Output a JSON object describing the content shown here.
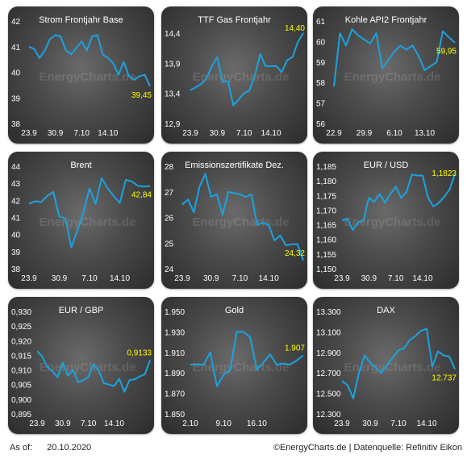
{
  "footer": {
    "as_of_label": "As of:",
    "as_of_date": "20.10.2020",
    "source": "©EnergyCharts.de | Datenquelle: Refinitiv Eikon"
  },
  "watermark": "EnergyCharts.de",
  "colors": {
    "line": "#1aa3e0",
    "last_value": "#ffff00",
    "text": "#ffffff",
    "panel": "#4a4a4a"
  },
  "chart_data": [
    {
      "type": "line",
      "title": "Strom Frontjahr Base",
      "ylim": [
        38,
        42
      ],
      "yticks": [
        "38",
        "39",
        "40",
        "41",
        "42"
      ],
      "xticks": [
        {
          "i": 0,
          "label": "23.9"
        },
        {
          "i": 5,
          "label": "30.9"
        },
        {
          "i": 10,
          "label": "7.10"
        },
        {
          "i": 15,
          "label": "14.10"
        }
      ],
      "values": [
        41.0,
        40.9,
        40.55,
        40.85,
        41.3,
        41.45,
        41.4,
        40.85,
        40.7,
        40.95,
        41.2,
        40.85,
        41.4,
        41.45,
        40.7,
        40.55,
        40.35,
        39.9,
        40.4,
        39.85,
        39.7,
        39.85,
        39.9,
        39.45
      ],
      "last_label": "39,45"
    },
    {
      "type": "line",
      "title": "TTF Gas Frontjahr",
      "ylim": [
        12.9,
        14.6
      ],
      "yticks": [
        "12,9",
        "13,4",
        "13,9",
        "14,4"
      ],
      "ytick_values": [
        12.9,
        13.4,
        13.9,
        14.4
      ],
      "xticks": [
        {
          "i": 0,
          "label": "23.9"
        },
        {
          "i": 5,
          "label": "30.9"
        },
        {
          "i": 10,
          "label": "7.10"
        },
        {
          "i": 15,
          "label": "14.10"
        }
      ],
      "values": [
        13.45,
        13.5,
        13.55,
        13.65,
        13.85,
        14.0,
        13.6,
        13.6,
        13.2,
        13.3,
        13.4,
        13.45,
        13.7,
        14.05,
        13.85,
        13.85,
        13.85,
        13.75,
        13.95,
        14.0,
        14.25,
        14.4
      ],
      "last_label": "14,40"
    },
    {
      "type": "line",
      "title": "Kohle API2 Frontjahr",
      "ylim": [
        56,
        61
      ],
      "yticks": [
        "56",
        "57",
        "58",
        "59",
        "60",
        "61"
      ],
      "xticks": [
        {
          "i": 0,
          "label": "22.9"
        },
        {
          "i": 5,
          "label": "29.9"
        },
        {
          "i": 10,
          "label": "6.10"
        },
        {
          "i": 15,
          "label": "13.10"
        }
      ],
      "values": [
        57.8,
        60.4,
        59.8,
        60.6,
        60.3,
        60.1,
        59.9,
        60.4,
        58.7,
        59.1,
        59.5,
        59.8,
        59.6,
        59.8,
        59.3,
        58.6,
        58.8,
        59.0,
        60.5,
        60.2,
        59.95
      ],
      "last_label": "59,95"
    },
    {
      "type": "line",
      "title": "Brent",
      "ylim": [
        38,
        44
      ],
      "yticks": [
        "38",
        "39",
        "40",
        "41",
        "42",
        "43",
        "44"
      ],
      "xticks": [
        {
          "i": 0,
          "label": "23.9"
        },
        {
          "i": 5,
          "label": "30.9"
        },
        {
          "i": 10,
          "label": "7.10"
        },
        {
          "i": 15,
          "label": "14.10"
        }
      ],
      "values": [
        41.8,
        41.95,
        41.9,
        42.25,
        42.5,
        41.05,
        40.95,
        39.25,
        40.25,
        41.3,
        42.7,
        41.8,
        43.3,
        42.7,
        42.25,
        41.85,
        43.2,
        43.1,
        42.85,
        42.8,
        42.84
      ],
      "last_label": "42,84"
    },
    {
      "type": "line",
      "title": "Emissionszertifikate Dez.",
      "ylim": [
        24,
        28
      ],
      "yticks": [
        "24",
        "25",
        "26",
        "27",
        "28"
      ],
      "xticks": [
        {
          "i": 0,
          "label": "23.9"
        },
        {
          "i": 5,
          "label": "30.9"
        },
        {
          "i": 10,
          "label": "7.10"
        },
        {
          "i": 15,
          "label": "14.10"
        }
      ],
      "values": [
        26.5,
        26.7,
        26.2,
        27.2,
        27.7,
        26.8,
        26.9,
        26.1,
        27.0,
        26.95,
        26.9,
        26.8,
        26.9,
        25.7,
        25.8,
        25.7,
        25.1,
        25.3,
        24.9,
        24.95,
        24.95,
        24.32
      ],
      "last_label": "24,32"
    },
    {
      "type": "line",
      "title": "EUR / USD",
      "ylim": [
        1.15,
        1.185
      ],
      "yticks": [
        "1,150",
        "1,155",
        "1,160",
        "1,165",
        "1,170",
        "1,175",
        "1,180",
        "1,185"
      ],
      "ytick_values": [
        1.15,
        1.155,
        1.16,
        1.165,
        1.17,
        1.175,
        1.18,
        1.185
      ],
      "xticks": [
        {
          "i": 0,
          "label": "23.9"
        },
        {
          "i": 5,
          "label": "30.9"
        },
        {
          "i": 10,
          "label": "7.10"
        },
        {
          "i": 15,
          "label": "14.10"
        }
      ],
      "values": [
        1.1665,
        1.167,
        1.1632,
        1.1658,
        1.1665,
        1.1742,
        1.1728,
        1.1755,
        1.1725,
        1.1755,
        1.178,
        1.1742,
        1.1762,
        1.1822,
        1.1818,
        1.1818,
        1.1742,
        1.1712,
        1.1725,
        1.1745,
        1.177,
        1.1823
      ],
      "last_label": "1,1823"
    },
    {
      "type": "line",
      "title": "EUR / GBP",
      "ylim": [
        0.895,
        0.93
      ],
      "yticks": [
        "0,895",
        "0,900",
        "0,905",
        "0,910",
        "0,915",
        "0,920",
        "0,925",
        "0,930"
      ],
      "ytick_values": [
        0.895,
        0.9,
        0.905,
        0.91,
        0.915,
        0.92,
        0.925,
        0.93
      ],
      "xticks": [
        {
          "i": 0,
          "label": "23.9"
        },
        {
          "i": 5,
          "label": "30.9"
        },
        {
          "i": 10,
          "label": "7.10"
        },
        {
          "i": 15,
          "label": "14.10"
        }
      ],
      "values": [
        0.9165,
        0.9145,
        0.911,
        0.9095,
        0.9075,
        0.9125,
        0.908,
        0.91,
        0.9058,
        0.9065,
        0.9075,
        0.912,
        0.9098,
        0.9055,
        0.905,
        0.9045,
        0.907,
        0.9025,
        0.9065,
        0.9068,
        0.9078,
        0.9085,
        0.9133
      ],
      "last_label": "0,9133"
    },
    {
      "type": "line",
      "title": "Gold",
      "ylim": [
        1850,
        1950
      ],
      "yticks": [
        "1.850",
        "1.870",
        "1.890",
        "1.910",
        "1.930",
        "1.950"
      ],
      "ytick_values": [
        1850,
        1870,
        1890,
        1910,
        1930,
        1950
      ],
      "xticks": [
        {
          "i": 0,
          "label": "2.10"
        },
        {
          "i": 5,
          "label": "9.10"
        },
        {
          "i": 10,
          "label": "16.10"
        }
      ],
      "values": [
        1898,
        1898,
        1898,
        1910,
        1877,
        1888,
        1893,
        1930,
        1930,
        1925,
        1893,
        1900,
        1908,
        1898,
        1899,
        1898,
        1902,
        1907
      ],
      "last_label": "1.907"
    },
    {
      "type": "line",
      "title": "DAX",
      "ylim": [
        12300,
        13300
      ],
      "yticks": [
        "12.300",
        "12.500",
        "12.700",
        "12.900",
        "13.100",
        "13.300"
      ],
      "ytick_values": [
        12300,
        12500,
        12700,
        12900,
        13100,
        13300
      ],
      "xticks": [
        {
          "i": 0,
          "label": "23.9"
        },
        {
          "i": 5,
          "label": "30.9"
        },
        {
          "i": 10,
          "label": "7.10"
        },
        {
          "i": 15,
          "label": "14.10"
        }
      ],
      "values": [
        12620,
        12580,
        12450,
        12700,
        12870,
        12800,
        12750,
        12700,
        12780,
        12850,
        12920,
        12940,
        13020,
        13060,
        13110,
        13130,
        12760,
        12910,
        12870,
        12860,
        12737
      ],
      "last_label": "12.737"
    }
  ]
}
